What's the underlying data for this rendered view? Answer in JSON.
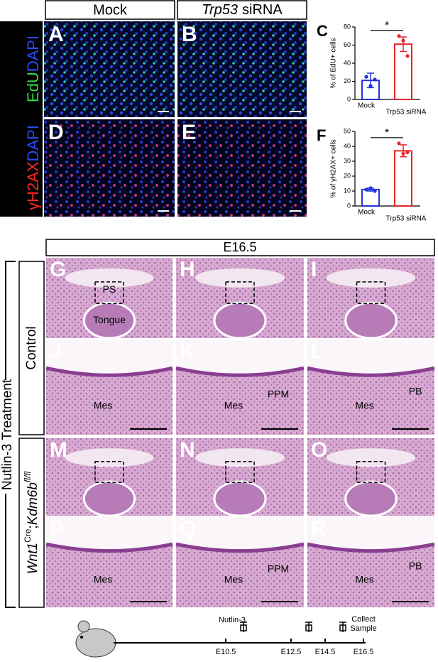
{
  "headers": {
    "mock": "Mock",
    "gene": "Trp53",
    "suffix": "siRNA"
  },
  "stains": [
    [
      "EdU",
      "DAPI"
    ],
    [
      "γH2AX",
      "DAPI"
    ]
  ],
  "letters": [
    "A",
    "B",
    "C",
    "D",
    "E",
    "F",
    "G",
    "H",
    "I",
    "J",
    "K",
    "L",
    "M",
    "N",
    "O",
    "P",
    "Q",
    "R"
  ],
  "chart_data": [
    {
      "type": "bar",
      "y_label": "% of EdU+ cells",
      "categories": [
        "Mock",
        "Trp53 siRNA"
      ],
      "values": [
        21,
        61
      ],
      "errors": [
        8,
        8
      ],
      "points": [
        [
          25,
          15,
          22
        ],
        [
          70,
          65,
          48
        ]
      ],
      "colors": [
        "#2233dd",
        "#e8262b"
      ],
      "significance": "*",
      "ylim": [
        0,
        80
      ],
      "yticks": [
        0,
        20,
        40,
        60,
        80
      ]
    },
    {
      "type": "bar",
      "y_label": "% of γH2AX+ cells",
      "categories": [
        "Mock",
        "Trp53 siRNA"
      ],
      "values": [
        11,
        37
      ],
      "errors": [
        1,
        4
      ],
      "points": [
        [
          11,
          12,
          10
        ],
        [
          42,
          35,
          36
        ]
      ],
      "colors": [
        "#2233dd",
        "#e8262b"
      ],
      "significance": "*",
      "ylim": [
        0,
        50
      ],
      "yticks": [
        0,
        10,
        20,
        30,
        40,
        50
      ]
    }
  ],
  "stage": "E16.5",
  "treatment": "Nutlin-3 Treatment",
  "groups": {
    "control": "Control",
    "mutant": {
      "gene1": "Wnt1",
      "sup1": "Cre",
      "sep": ";",
      "gene2": "Kdm6b",
      "sup2": "fl/fl"
    }
  },
  "annotations": [
    {
      "panel": "G",
      "text": "PS"
    },
    {
      "panel": "G",
      "text": "Tongue"
    },
    {
      "panel": "J",
      "text": "Mes"
    },
    {
      "panel": "K",
      "text": "Mes"
    },
    {
      "panel": "K",
      "text": "PPM"
    },
    {
      "panel": "L",
      "text": "Mes"
    },
    {
      "panel": "L",
      "text": "PB"
    },
    {
      "panel": "P",
      "text": "Mes"
    },
    {
      "panel": "Q",
      "text": "Mes"
    },
    {
      "panel": "Q",
      "text": "PPM"
    },
    {
      "panel": "R",
      "text": "Mes"
    },
    {
      "panel": "R",
      "text": "PB"
    }
  ],
  "timeline": {
    "drug": "Nutlin-3",
    "end": [
      "Collect",
      "Sample"
    ],
    "stages": [
      "E10.5",
      "E12.5",
      "E14.5",
      "E16.5"
    ]
  }
}
